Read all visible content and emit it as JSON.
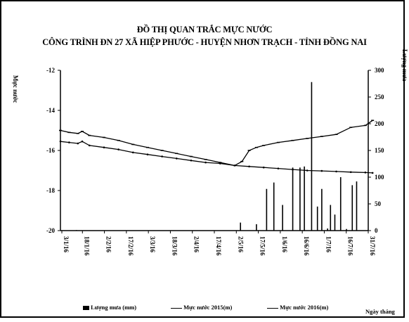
{
  "chart_data": {
    "type": "line+bar",
    "title": "ĐỒ THỊ QUAN TRẮC MỰC NƯỚC",
    "subtitle": "CÔNG TRÌNH ĐN 27 XÃ HIỆP PHƯỚC - HUYỆN NHƠN TRẠCH - TỈNH ĐỒNG NAI",
    "ylabel_left": "Mực nước",
    "ylabel_right": "Lượng mưa",
    "xlabel": "Ngày tháng",
    "ylim_left": [
      -20,
      -12
    ],
    "yticks_left": [
      -12,
      -14,
      -16,
      -18,
      -20
    ],
    "ylim_right": [
      0,
      300
    ],
    "yticks_right": [
      300,
      250,
      200,
      150,
      100,
      50,
      0
    ],
    "x_categories": [
      "3/1/16",
      "18/1/16",
      "2/2/16",
      "17/2/16",
      "3/3/16",
      "18/3/16",
      "2/4/16",
      "17/4/16",
      "2/5/16",
      "17/5/16",
      "1/6/16",
      "16/6/16",
      "1/7/16",
      "16/7/16",
      "31/7/16"
    ],
    "legend_position": "bottom",
    "series": [
      {
        "name": "Mực nước 2015(m)",
        "kind": "line",
        "marker": "dash",
        "x": [
          0,
          6,
          12,
          15,
          20,
          30,
          40,
          50,
          60,
          70,
          80,
          90,
          100,
          110,
          120,
          125,
          130,
          135,
          140,
          150,
          160,
          170,
          180,
          190,
          200,
          210,
          215
        ],
        "values": [
          -15.0,
          -15.1,
          -15.15,
          -15.05,
          -15.25,
          -15.35,
          -15.5,
          -15.7,
          -15.85,
          -16.0,
          -16.15,
          -16.3,
          -16.45,
          -16.6,
          -16.75,
          -16.55,
          -16.0,
          -15.85,
          -15.75,
          -15.6,
          -15.5,
          -15.4,
          -15.3,
          -15.2,
          -14.85,
          -14.75,
          -14.5
        ]
      },
      {
        "name": "Mực nước 2016(m)",
        "kind": "line",
        "marker": "dot",
        "x": [
          0,
          6,
          12,
          15,
          20,
          30,
          40,
          50,
          60,
          70,
          80,
          90,
          100,
          110,
          120,
          130,
          140,
          150,
          160,
          170,
          180,
          190,
          200,
          210,
          215
        ],
        "values": [
          -15.55,
          -15.6,
          -15.65,
          -15.55,
          -15.75,
          -15.85,
          -15.95,
          -16.1,
          -16.2,
          -16.3,
          -16.4,
          -16.5,
          -16.6,
          -16.65,
          -16.75,
          -16.8,
          -16.85,
          -16.9,
          -16.95,
          -17.0,
          -17.02,
          -17.05,
          -17.08,
          -17.1,
          -17.12
        ]
      },
      {
        "name": "Lượng mưa (mm)",
        "kind": "bar",
        "axis": "right",
        "x": [
          11,
          124,
          135,
          142,
          147,
          153,
          160,
          165,
          168,
          173,
          177,
          180,
          184,
          186,
          189,
          193,
          197,
          201,
          204
        ],
        "values": [
          1,
          15,
          12,
          78,
          90,
          48,
          118,
          118,
          120,
          278,
          45,
          78,
          4,
          48,
          30,
          100,
          3,
          85,
          92
        ]
      }
    ]
  }
}
